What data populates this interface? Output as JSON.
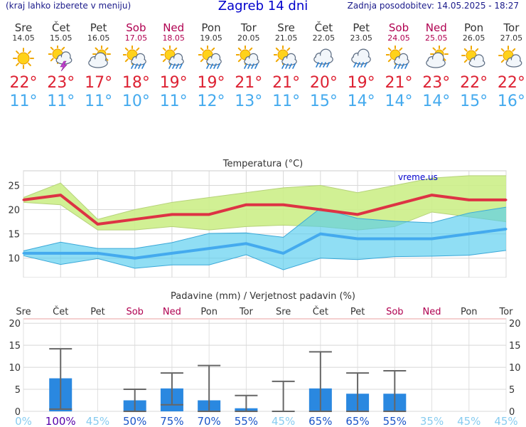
{
  "header": {
    "hint": "(kraj lahko izberete v meniju)",
    "title": "Zagreb 14 dni",
    "updated": "Zadnja posodobitev: 14.05.2025 - 18:27"
  },
  "days": [
    {
      "name": "Sre",
      "date": "14.05",
      "weekend": false,
      "icon": "sun-icon",
      "tmax": "22",
      "tmin": "11"
    },
    {
      "name": "Čet",
      "date": "15.05",
      "weekend": false,
      "icon": "thunderstorm-icon",
      "tmax": "23",
      "tmin": "11"
    },
    {
      "name": "Pet",
      "date": "16.05",
      "weekend": false,
      "icon": "partly-cloudy-icon",
      "tmax": "17",
      "tmin": "11"
    },
    {
      "name": "Sob",
      "date": "17.05",
      "weekend": true,
      "icon": "sun-rain-icon",
      "tmax": "18",
      "tmin": "10"
    },
    {
      "name": "Ned",
      "date": "18.05",
      "weekend": true,
      "icon": "sun-rain-icon",
      "tmax": "19",
      "tmin": "11"
    },
    {
      "name": "Pon",
      "date": "19.05",
      "weekend": false,
      "icon": "sun-rain-icon",
      "tmax": "19",
      "tmin": "12"
    },
    {
      "name": "Tor",
      "date": "20.05",
      "weekend": false,
      "icon": "sun-rain-icon",
      "tmax": "21",
      "tmin": "13"
    },
    {
      "name": "Sre",
      "date": "21.05",
      "weekend": false,
      "icon": "sun-rain-icon",
      "tmax": "21",
      "tmin": "11"
    },
    {
      "name": "Čet",
      "date": "22.05",
      "weekend": false,
      "icon": "rain-cloud-icon",
      "tmax": "20",
      "tmin": "15"
    },
    {
      "name": "Pet",
      "date": "23.05",
      "weekend": false,
      "icon": "rain-cloud-icon",
      "tmax": "19",
      "tmin": "14"
    },
    {
      "name": "Sob",
      "date": "24.05",
      "weekend": true,
      "icon": "sun-rain-icon",
      "tmax": "21",
      "tmin": "14"
    },
    {
      "name": "Ned",
      "date": "25.05",
      "weekend": true,
      "icon": "partly-cloudy-icon",
      "tmax": "23",
      "tmin": "14"
    },
    {
      "name": "Pon",
      "date": "26.05",
      "weekend": false,
      "icon": "sun-cloud-icon",
      "tmax": "22",
      "tmin": "15"
    },
    {
      "name": "Tor",
      "date": "27.05",
      "weekend": false,
      "icon": "sun-cloud-icon",
      "tmax": "22",
      "tmin": "16"
    }
  ],
  "colors": {
    "max": "#dd2233",
    "min": "#44aaee",
    "weekend": "#b00050",
    "bar": "#2a88e0",
    "prob_low": "#88ccf0",
    "prob_high": "#5500aa"
  },
  "chart_data": [
    {
      "type": "area",
      "title": "Temperatura (°C)",
      "watermark": "vreme.us",
      "categories": [
        "Sre",
        "Čet",
        "Pet",
        "Sob",
        "Ned",
        "Pon",
        "Tor",
        "Sre",
        "Čet",
        "Pet",
        "Sob",
        "Ned",
        "Pon",
        "Tor"
      ],
      "ylim": [
        6,
        28
      ],
      "yticks": [
        10,
        15,
        20,
        25
      ],
      "grid": true,
      "series": [
        {
          "values": [
            22,
            23,
            17,
            18,
            19,
            19,
            21,
            21,
            20,
            19,
            21,
            23,
            22,
            22
          ],
          "upper": [
            22.5,
            25.5,
            18,
            20,
            21.5,
            22.5,
            23.5,
            24.5,
            25,
            23.5,
            25,
            26.5,
            27,
            27
          ],
          "lower": [
            21.5,
            21,
            15.8,
            15.8,
            16.5,
            15.8,
            16.5,
            16.8,
            16.5,
            15.8,
            16.5,
            19.5,
            18.5,
            17.5
          ]
        },
        {
          "values": [
            11,
            11,
            11,
            10,
            11,
            12,
            13,
            11,
            15,
            14,
            14,
            14,
            15,
            16
          ],
          "upper": [
            11.5,
            13.3,
            12,
            12,
            13.2,
            15.1,
            15.2,
            14.3,
            20.3,
            18.2,
            17.6,
            17.3,
            19.3,
            20.5
          ],
          "lower": [
            10.5,
            8.7,
            9.9,
            7.9,
            8.6,
            8.6,
            10.7,
            7.6,
            10,
            9.7,
            10.3,
            10.4,
            10.6,
            11.6
          ]
        }
      ]
    },
    {
      "type": "bar",
      "title": "Padavine (mm) / Verjetnost padavin (%)",
      "categories": [
        "Sre",
        "Čet",
        "Pet",
        "Sob",
        "Ned",
        "Pon",
        "Tor",
        "Sre",
        "Čet",
        "Pet",
        "Sob",
        "Ned",
        "Pon",
        "Tor"
      ],
      "ylim": [
        0,
        21
      ],
      "yticks": [
        0,
        5,
        10,
        15,
        20
      ],
      "values": [
        0,
        7.5,
        0,
        2.5,
        5.2,
        2.5,
        0.7,
        0.1,
        5.2,
        4,
        4,
        0,
        0,
        0
      ],
      "whisker_high": [
        null,
        14.2,
        null,
        5,
        8.7,
        10.4,
        3.6,
        6.8,
        13.5,
        8.7,
        9.2,
        null,
        null,
        null
      ],
      "whisker_low": [
        null,
        0.5,
        null,
        0,
        1.5,
        0,
        0,
        0,
        0,
        0,
        0,
        null,
        null,
        null
      ],
      "probabilities": [
        "0%",
        "100%",
        "45%",
        "50%",
        "75%",
        "70%",
        "55%",
        "45%",
        "65%",
        "65%",
        "55%",
        "35%",
        "45%",
        "45%"
      ]
    }
  ]
}
